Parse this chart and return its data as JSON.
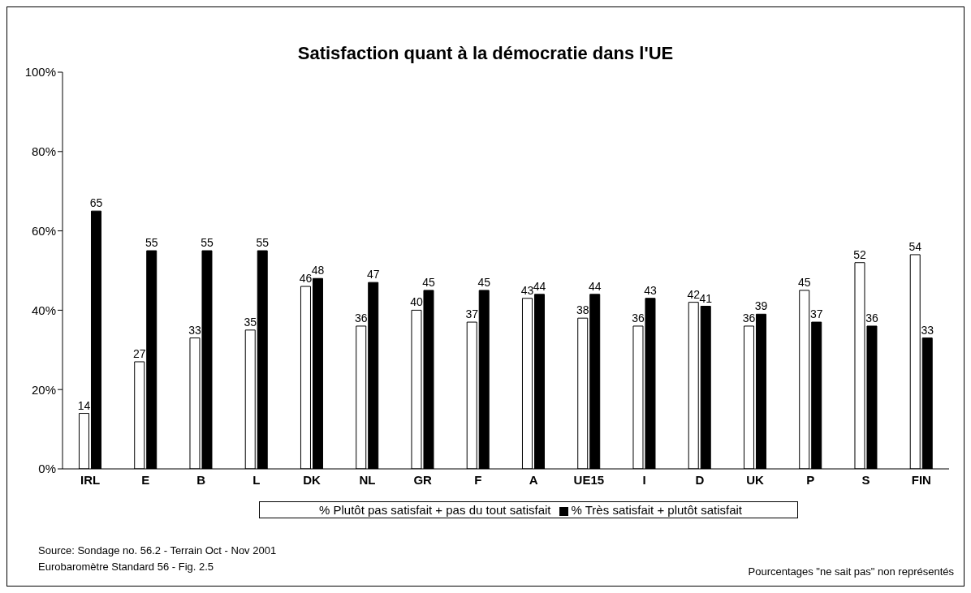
{
  "chart_data": {
    "type": "bar",
    "title": "Satisfaction quant à la démocratie dans l'UE",
    "categories": [
      "IRL",
      "E",
      "B",
      "L",
      "DK",
      "NL",
      "GR",
      "F",
      "A",
      "UE15",
      "I",
      "D",
      "UK",
      "P",
      "S",
      "FIN"
    ],
    "series": [
      {
        "name": "% Plutôt pas satisfait + pas du tout satisfait",
        "color": "#ffffff",
        "values": [
          14,
          27,
          33,
          35,
          46,
          36,
          40,
          37,
          43,
          38,
          36,
          42,
          36,
          45,
          52,
          54
        ]
      },
      {
        "name": "% Très satisfait + plutôt satisfait",
        "color": "#000000",
        "values": [
          65,
          55,
          55,
          55,
          48,
          47,
          45,
          45,
          44,
          44,
          43,
          41,
          39,
          37,
          36,
          33
        ]
      }
    ],
    "ylim": [
      0,
      100
    ],
    "yticks": [
      {
        "value": 0,
        "label": "0%"
      },
      {
        "value": 20,
        "label": "20%"
      },
      {
        "value": 40,
        "label": "40%"
      },
      {
        "value": 60,
        "label": "60%"
      },
      {
        "value": 80,
        "label": "80%"
      },
      {
        "value": 100,
        "label": "100%"
      }
    ],
    "data_labels": true,
    "grid": false,
    "legend": "bottom",
    "annotations": [
      "Source: Sondage no. 56.2 -  Terrain Oct - Nov 2001",
      "Eurobaromètre Standard 56 - Fig. 2.5",
      "Pourcentages \"ne sait pas\" non représentés"
    ]
  }
}
